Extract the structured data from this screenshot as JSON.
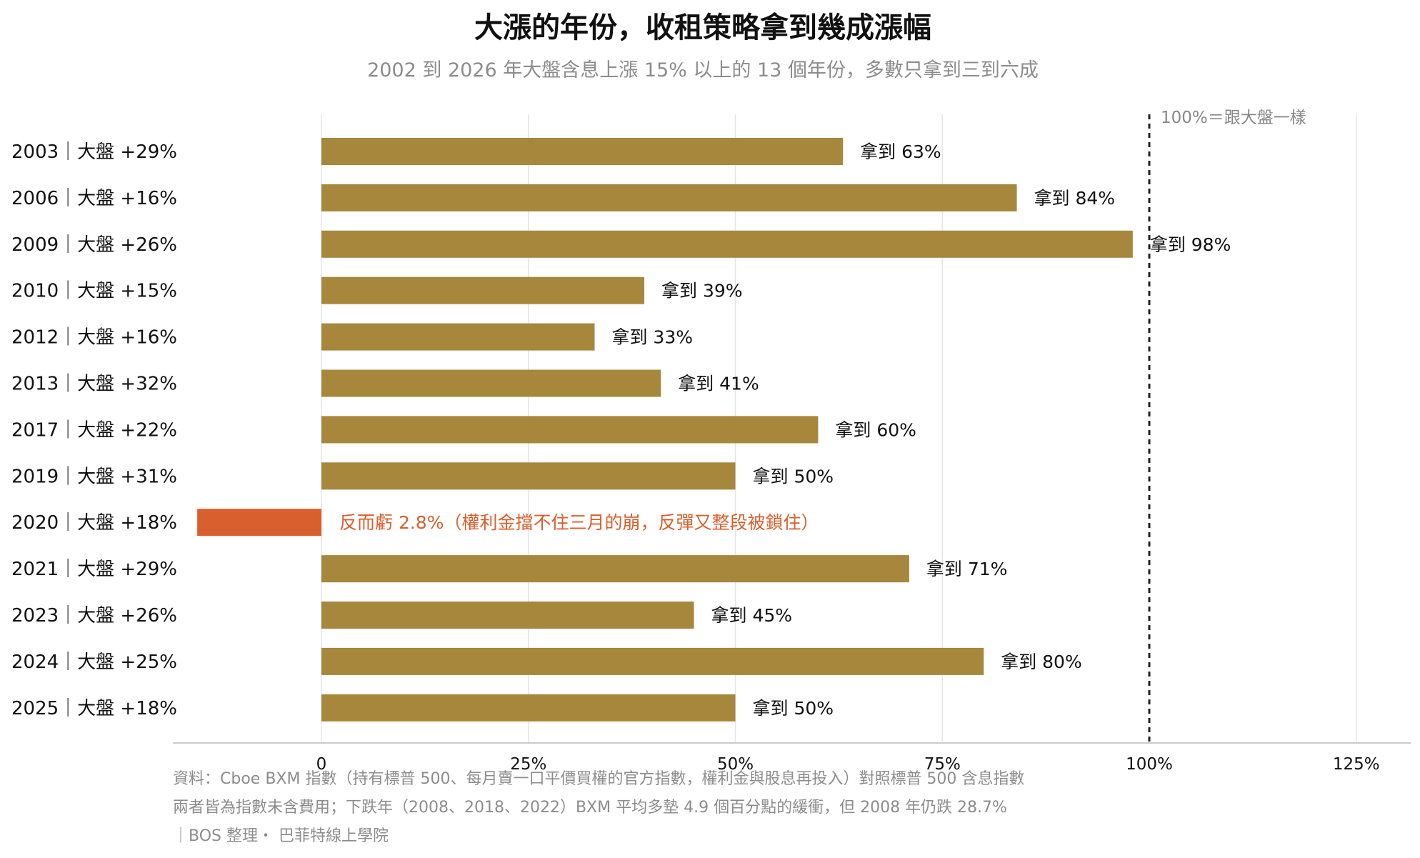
{
  "title": "大漲的年份，收租策略拿到幾成漲幅",
  "subtitle": "2002 到 2026 年大盤含息上漲 15% 以上的 13 個年份，多數只拿到三到六成",
  "reference_label": "100%＝跟大盤一樣",
  "footer": {
    "line1": "資料：Cboe BXM 指數（持有標普 500、每月賣一口平價買權的官方指數，權利金與股息再投入）對照標普 500 含息指數",
    "line2": "兩者皆為指數未含費用；下跌年（2008、2018、2022）BXM 平均多墊 4.9 個百分點的緩衝，但 2008 年仍跌 28.7%",
    "line3": "｜BOS 整理・ 巴菲特線上學院"
  },
  "colors": {
    "positive_bar": "#a6873b",
    "negative_bar": "#d95f2e",
    "gridline": "#e5e5e5",
    "reference_line": "#222222",
    "title": "#111111",
    "subtitle": "#8c8c8c"
  },
  "chart_data": {
    "type": "bar",
    "orientation": "horizontal",
    "xlim": [
      -18,
      136
    ],
    "xticks": [
      0,
      25,
      50,
      75,
      100,
      125
    ],
    "xtick_labels": [
      "0",
      "25%",
      "50%",
      "75%",
      "100%",
      "125%"
    ],
    "reference_value": 100,
    "grid": true,
    "categories": [
      "2003｜大盤 +29%",
      "2006｜大盤 +16%",
      "2009｜大盤 +26%",
      "2010｜大盤 +15%",
      "2012｜大盤 +16%",
      "2013｜大盤 +32%",
      "2017｜大盤 +22%",
      "2019｜大盤 +31%",
      "2020｜大盤 +18%",
      "2021｜大盤 +29%",
      "2023｜大盤 +26%",
      "2024｜大盤 +25%",
      "2025｜大盤 +18%"
    ],
    "values": [
      63,
      84,
      98,
      39,
      33,
      41,
      60,
      50,
      -15,
      71,
      45,
      80,
      50
    ],
    "labels": [
      "拿到 63%",
      "拿到 84%",
      "拿到 98%",
      "拿到 39%",
      "拿到 33%",
      "拿到 41%",
      "拿到 60%",
      "拿到 50%",
      "反而虧 2.8%（權利金擋不住三月的崩，反彈又整段被鎖住）",
      "拿到 71%",
      "拿到 45%",
      "拿到 80%",
      "拿到 50%"
    ]
  }
}
